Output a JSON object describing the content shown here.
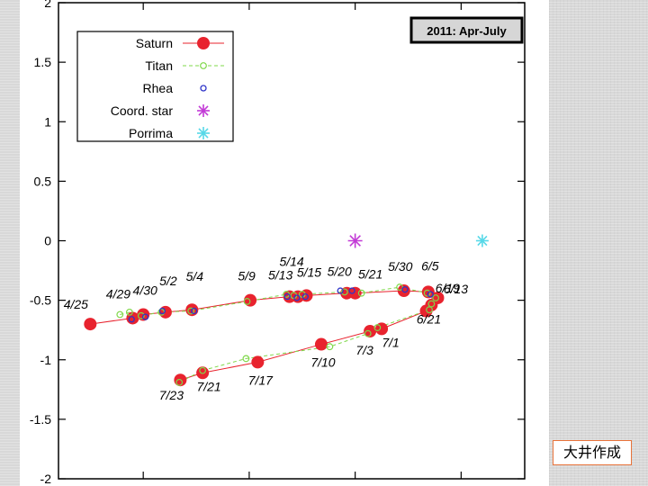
{
  "credit": "大井作成",
  "chart_data": {
    "type": "scatter",
    "title_box": "2011: Apr-July",
    "ylim": [
      -2,
      2
    ],
    "yticks": [
      2,
      1.5,
      1,
      0.5,
      0,
      -0.5,
      -1,
      -1.5,
      -2
    ],
    "ytick_labels": [
      "2",
      "1.5",
      "1",
      "0.5",
      "0",
      "-0.5",
      "-1",
      "-1.5",
      "-2"
    ],
    "xlim": [
      -3,
      1.4
    ],
    "xticks": [
      -2.2,
      -1.2,
      -0.2,
      0.8
    ],
    "grid": false,
    "legend_position": "top-left",
    "legend": [
      {
        "name": "Saturn",
        "marker": "filled-circle-line",
        "color": "#e8232e"
      },
      {
        "name": "Titan",
        "marker": "open-circle-dashed",
        "color": "#7fd84a"
      },
      {
        "name": "Rhea",
        "marker": "small-open-circle",
        "color": "#2f35c8"
      },
      {
        "name": "Coord. star",
        "marker": "star",
        "color": "#c23ad6"
      },
      {
        "name": "Porrima",
        "marker": "star",
        "color": "#56d8e8"
      }
    ],
    "series": [
      {
        "name": "Saturn",
        "color": "#e8232e",
        "points": [
          {
            "label": "4/25",
            "x": -2.7,
            "y": -0.7
          },
          {
            "label": "4/29",
            "x": -2.3,
            "y": -0.65
          },
          {
            "label": "4/30",
            "x": -2.2,
            "y": -0.62
          },
          {
            "label": "5/2",
            "x": -1.99,
            "y": -0.6
          },
          {
            "label": "5/4",
            "x": -1.74,
            "y": -0.58
          },
          {
            "label": "5/9",
            "x": -1.19,
            "y": -0.5
          },
          {
            "label": "5/13",
            "x": -0.82,
            "y": -0.47
          },
          {
            "label": "5/14",
            "x": -0.74,
            "y": -0.47
          },
          {
            "label": "5/15",
            "x": -0.66,
            "y": -0.46
          },
          {
            "label": "5/20",
            "x": -0.28,
            "y": -0.44
          },
          {
            "label": "5/21",
            "x": -0.2,
            "y": -0.44
          },
          {
            "label": "5/30",
            "x": 0.26,
            "y": -0.42
          },
          {
            "label": "6/5",
            "x": 0.49,
            "y": -0.43
          },
          {
            "label": "6/13",
            "x": 0.58,
            "y": -0.48
          },
          {
            "label": "6/19",
            "x": 0.52,
            "y": -0.54
          },
          {
            "label": "6/21",
            "x": 0.47,
            "y": -0.59
          },
          {
            "label": "7/1",
            "x": 0.05,
            "y": -0.74
          },
          {
            "label": "7/3",
            "x": -0.06,
            "y": -0.76
          },
          {
            "label": "7/10",
            "x": -0.52,
            "y": -0.87
          },
          {
            "label": "7/17",
            "x": -1.12,
            "y": -1.02
          },
          {
            "label": "7/21",
            "x": -1.64,
            "y": -1.11
          },
          {
            "label": "7/23",
            "x": -1.85,
            "y": -1.17
          }
        ]
      },
      {
        "name": "Titan",
        "color": "#7fd84a",
        "points": [
          [
            -2.42,
            -0.62
          ],
          [
            -2.33,
            -0.6
          ],
          [
            -2.22,
            -0.63
          ],
          [
            -2.03,
            -0.6
          ],
          [
            -1.75,
            -0.59
          ],
          [
            -1.22,
            -0.51
          ],
          [
            -0.85,
            -0.45
          ],
          [
            -0.78,
            -0.46
          ],
          [
            -0.7,
            -0.45
          ],
          [
            -0.3,
            -0.43
          ],
          [
            -0.14,
            -0.44
          ],
          [
            0.22,
            -0.39
          ],
          [
            0.48,
            -0.44
          ],
          [
            0.56,
            -0.48
          ],
          [
            0.52,
            -0.53
          ],
          [
            0.5,
            -0.58
          ],
          [
            0.01,
            -0.73
          ],
          [
            -0.08,
            -0.78
          ],
          [
            -0.44,
            -0.89
          ],
          [
            -1.23,
            -0.99
          ],
          [
            -1.64,
            -1.09
          ],
          [
            -1.86,
            -1.19
          ]
        ]
      },
      {
        "name": "Rhea",
        "color": "#2f35c8",
        "points": [
          [
            -2.31,
            -0.66
          ],
          [
            -2.18,
            -0.64
          ],
          [
            -2.02,
            -0.59
          ],
          [
            -1.72,
            -0.59
          ],
          [
            -0.84,
            -0.47
          ],
          [
            -0.75,
            -0.48
          ],
          [
            -0.67,
            -0.47
          ],
          [
            -0.34,
            -0.42
          ],
          [
            -0.23,
            -0.42
          ],
          [
            0.27,
            -0.41
          ],
          [
            0.51,
            -0.45
          ]
        ]
      },
      {
        "name": "Coord. star",
        "color": "#c23ad6",
        "points": [
          [
            -0.2,
            0
          ]
        ]
      },
      {
        "name": "Porrima",
        "color": "#56d8e8",
        "points": [
          [
            1.0,
            0
          ]
        ]
      }
    ]
  }
}
